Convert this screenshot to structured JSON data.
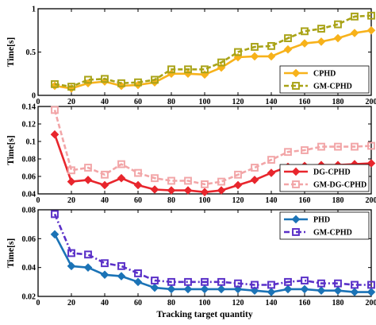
{
  "xlabel": "Tracking target quantity",
  "chart_data": [
    {
      "type": "line",
      "ylabel": "Time[s]",
      "xlim": [
        0,
        200
      ],
      "ylim": [
        0,
        1
      ],
      "xticks": [
        0,
        20,
        40,
        60,
        80,
        100,
        120,
        140,
        160,
        180,
        200
      ],
      "yticks": [
        0,
        0.5,
        1
      ],
      "ytick_labels": [
        "0",
        "0.5",
        "1"
      ],
      "show_xtick_labels": true,
      "legend_position": "bottom-right",
      "x": [
        10,
        20,
        30,
        40,
        50,
        60,
        70,
        80,
        90,
        100,
        110,
        120,
        130,
        140,
        150,
        160,
        170,
        180,
        190,
        200
      ],
      "series": [
        {
          "name": "CPHD",
          "color": "#f7b21b",
          "dash": "solid",
          "marker": "diamond",
          "values": [
            0.11,
            0.08,
            0.14,
            0.16,
            0.11,
            0.12,
            0.15,
            0.25,
            0.25,
            0.24,
            0.32,
            0.44,
            0.45,
            0.45,
            0.53,
            0.6,
            0.62,
            0.66,
            0.72,
            0.75
          ]
        },
        {
          "name": "GM-CPHD",
          "color": "#a9a317",
          "dash": "dash",
          "marker": "square",
          "values": [
            0.13,
            0.1,
            0.18,
            0.19,
            0.14,
            0.15,
            0.18,
            0.3,
            0.3,
            0.3,
            0.38,
            0.5,
            0.56,
            0.57,
            0.66,
            0.74,
            0.77,
            0.82,
            0.91,
            0.92
          ]
        }
      ]
    },
    {
      "type": "line",
      "ylabel": "Time[s]",
      "xlim": [
        0,
        200
      ],
      "ylim": [
        0.04,
        0.14
      ],
      "xticks": [
        0,
        20,
        40,
        60,
        80,
        100,
        120,
        140,
        160,
        180,
        200
      ],
      "yticks": [
        0.04,
        0.06,
        0.08,
        0.1,
        0.12,
        0.14
      ],
      "ytick_labels": [
        "0.04",
        "0.06",
        "0.08",
        "0.1",
        "0.12",
        "0.14"
      ],
      "show_xtick_labels": true,
      "legend_position": "bottom-right",
      "x": [
        10,
        20,
        30,
        40,
        50,
        60,
        70,
        80,
        90,
        100,
        110,
        120,
        130,
        140,
        150,
        160,
        170,
        180,
        190,
        200
      ],
      "series": [
        {
          "name": "DG-CPHD",
          "color": "#e8262d",
          "dash": "solid",
          "marker": "diamond",
          "values": [
            0.108,
            0.054,
            0.056,
            0.05,
            0.058,
            0.05,
            0.045,
            0.044,
            0.044,
            0.042,
            0.044,
            0.05,
            0.056,
            0.064,
            0.071,
            0.072,
            0.073,
            0.073,
            0.074,
            0.075
          ]
        },
        {
          "name": "GM-DG-CPHD",
          "color": "#f2a6a8",
          "dash": "dash",
          "marker": "square",
          "values": [
            0.136,
            0.067,
            0.07,
            0.062,
            0.074,
            0.064,
            0.058,
            0.055,
            0.055,
            0.051,
            0.054,
            0.062,
            0.07,
            0.079,
            0.088,
            0.09,
            0.094,
            0.094,
            0.094,
            0.095
          ]
        }
      ]
    },
    {
      "type": "line",
      "ylabel": "Time[s]",
      "xlim": [
        0,
        200
      ],
      "ylim": [
        0.02,
        0.08
      ],
      "xticks": [
        0,
        20,
        40,
        60,
        80,
        100,
        120,
        140,
        160,
        180,
        200
      ],
      "yticks": [
        0.02,
        0.04,
        0.06,
        0.08
      ],
      "ytick_labels": [
        "0.02",
        "0.04",
        "0.06",
        "0.08"
      ],
      "show_xtick_labels": true,
      "legend_position": "top-right",
      "x": [
        10,
        20,
        30,
        40,
        50,
        60,
        70,
        80,
        90,
        100,
        110,
        120,
        130,
        140,
        150,
        160,
        170,
        180,
        190,
        200
      ],
      "series": [
        {
          "name": "PHD",
          "color": "#1b73b6",
          "dash": "solid",
          "marker": "diamond",
          "values": [
            0.063,
            0.041,
            0.04,
            0.035,
            0.034,
            0.03,
            0.026,
            0.025,
            0.025,
            0.025,
            0.025,
            0.025,
            0.024,
            0.023,
            0.025,
            0.025,
            0.024,
            0.024,
            0.023,
            0.023
          ]
        },
        {
          "name": "GM-CPHD",
          "color": "#5a30c8",
          "dash": "dashdot",
          "marker": "square",
          "values": [
            0.077,
            0.05,
            0.049,
            0.043,
            0.041,
            0.036,
            0.031,
            0.03,
            0.03,
            0.03,
            0.03,
            0.029,
            0.028,
            0.028,
            0.03,
            0.031,
            0.029,
            0.029,
            0.028,
            0.028
          ]
        }
      ]
    }
  ]
}
